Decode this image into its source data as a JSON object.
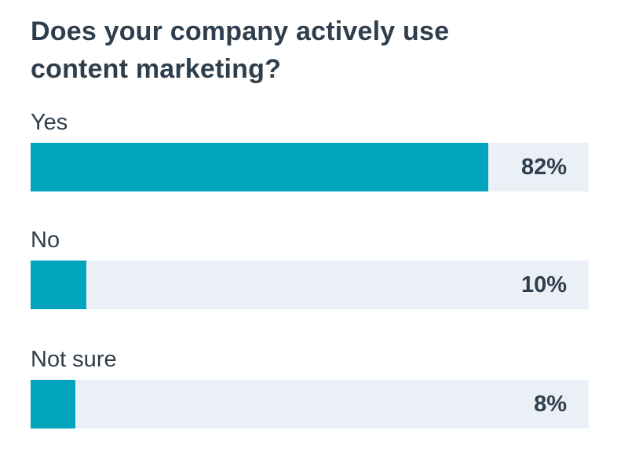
{
  "chart_data": {
    "type": "bar",
    "orientation": "horizontal",
    "title": "Does your company actively use content marketing?",
    "categories": [
      "Yes",
      "No",
      "Not sure"
    ],
    "values": [
      82,
      10,
      8
    ],
    "value_labels": [
      "82%",
      "10%",
      "8%"
    ],
    "xlim": [
      0,
      100
    ],
    "grid": false,
    "colors": {
      "bar": "#00a4bd",
      "track": "#eaf0f6",
      "text": "#2f3e4c"
    }
  }
}
